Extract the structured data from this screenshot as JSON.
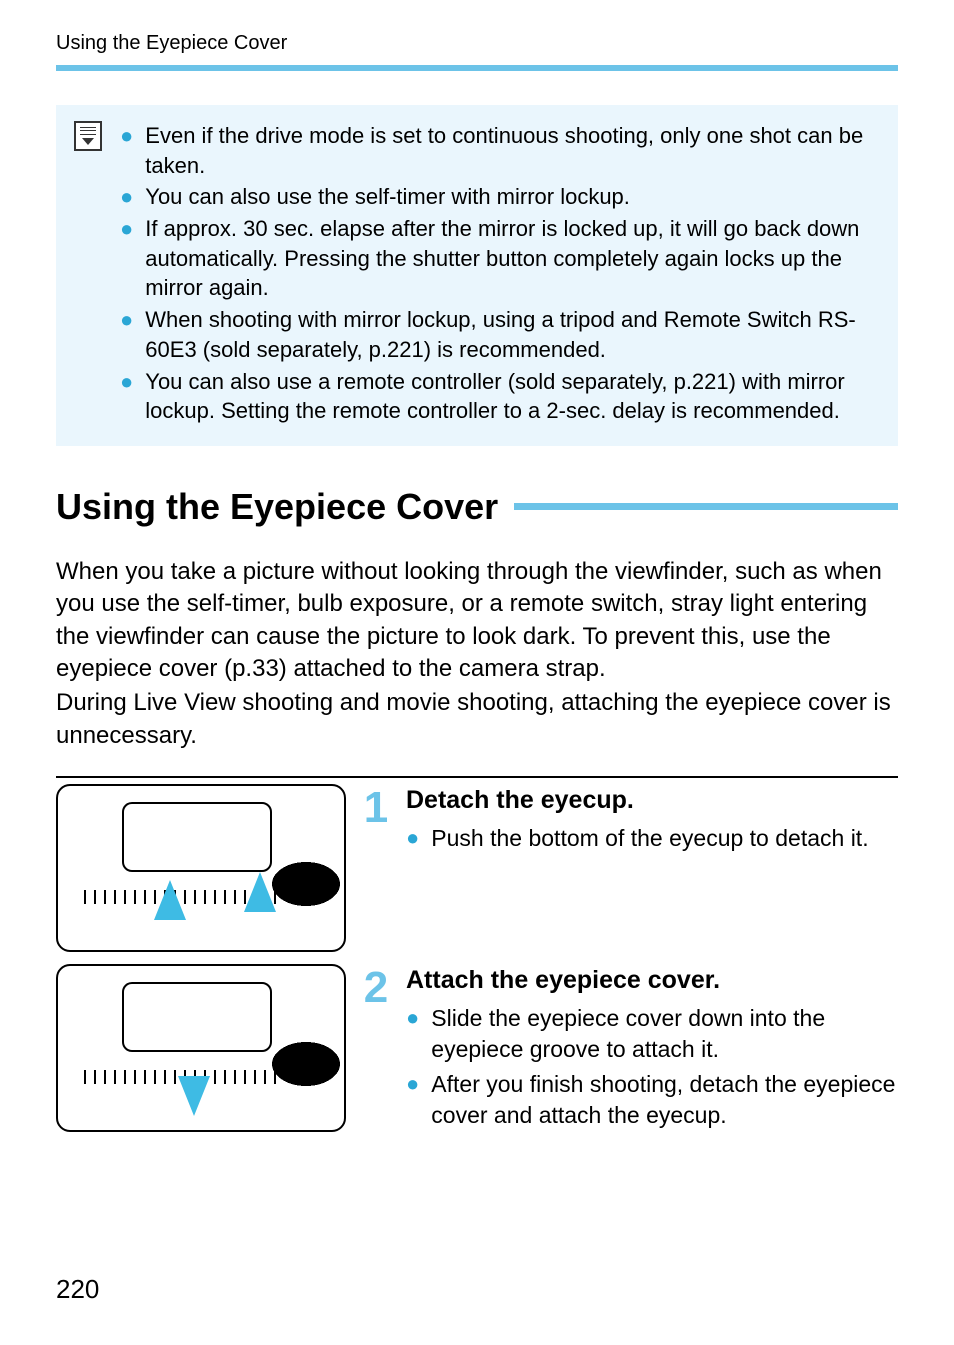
{
  "running_head": "Using the Eyepiece Cover",
  "colors": {
    "accent": "#6cc3e8",
    "note_bg": "#eaf6fd",
    "bullet": "#2aa6d5"
  },
  "note": {
    "items": [
      "Even if the drive mode is set to continuous shooting, only one shot can be taken.",
      "You can also use the self-timer with mirror lockup.",
      "If approx. 30 sec. elapse after the mirror is locked up, it will go back down automatically. Pressing the shutter button completely again locks up the mirror again.",
      "When shooting with mirror lockup, using a tripod and Remote Switch RS-60E3 (sold separately, p.221) is recommended.",
      "You can also use a remote controller (sold separately, p.221) with mirror lockup. Setting the remote controller to a 2-sec. delay is recommended."
    ]
  },
  "section_title": "Using the Eyepiece Cover",
  "intro": [
    "When you take a picture without looking through the viewfinder, such as when you use the self-timer, bulb exposure, or a remote switch, stray light entering the viewfinder can cause the picture to look dark. To prevent this, use the eyepiece cover (p.33) attached to the camera strap.",
    "During Live View shooting and movie shooting, attaching the eyepiece cover is unnecessary."
  ],
  "steps": [
    {
      "number": "1",
      "title": "Detach the eyecup.",
      "points": [
        "Push the bottom of the eyecup to detach it."
      ]
    },
    {
      "number": "2",
      "title": "Attach the eyepiece cover.",
      "points": [
        "Slide the eyepiece cover down into the eyepiece groove to attach it.",
        "After you finish shooting, detach the eyepiece cover and attach the eyecup."
      ]
    }
  ],
  "page_number": "220"
}
